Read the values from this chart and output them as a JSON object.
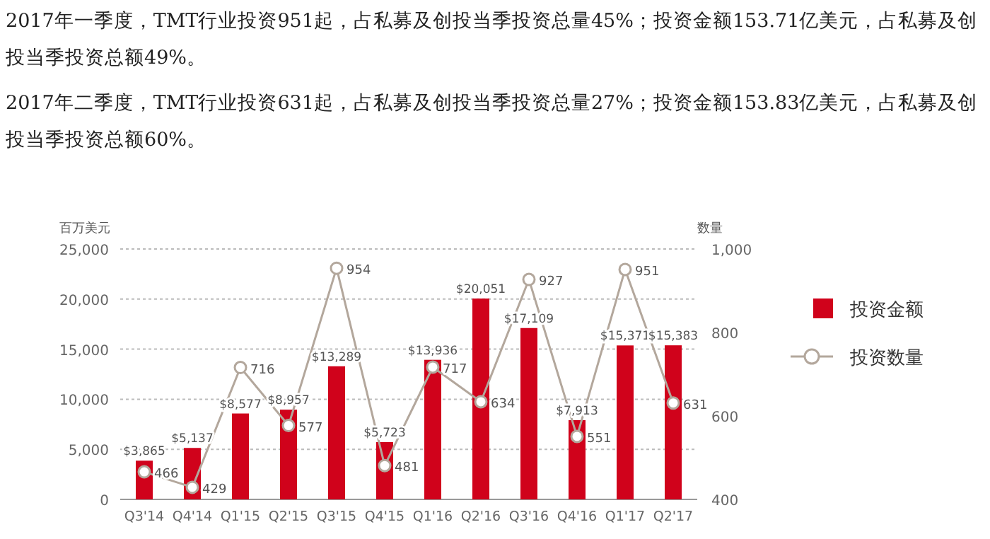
{
  "chart_data": {
    "type": "bar",
    "annotations": [
      "2017年一季度，TMT行业投资951起，占私募及创投当季投资总量45%；投资金额153.71亿美元，占私募及创投当季投资总额49%。",
      "2017年二季度，TMT行业投资631起，占私募及创投当季投资总量27%；投资金额153.83亿美元，占私募及创投当季投资总额60%。"
    ],
    "ylabel": "百万美元",
    "y2label": "数量",
    "categories": [
      "Q3'14",
      "Q4'14",
      "Q1'15",
      "Q2'15",
      "Q3'15",
      "Q4'15",
      "Q1'16",
      "Q2'16",
      "Q3'16",
      "Q4'16",
      "Q1'17",
      "Q2'17"
    ],
    "series": [
      {
        "name": "投资金额",
        "color": "#d0021b",
        "values": [
          3865,
          5137,
          8577,
          8957,
          13289,
          5723,
          13936,
          20051,
          17109,
          7913,
          15371,
          15383
        ],
        "value_labels": [
          "$3,865",
          "$5,137",
          "$8,577",
          "$8,957",
          "$13,289",
          "$5,723",
          "$13,936",
          "$20,051",
          "$17,109",
          "$7,913",
          "$15,371",
          "$15,383"
        ]
      },
      {
        "name": "投资数量",
        "type": "line",
        "axis": "y2",
        "color": "#b3a79c",
        "marker": "circle",
        "values": [
          466,
          429,
          716,
          577,
          954,
          481,
          717,
          634,
          927,
          551,
          951,
          631
        ],
        "value_labels": [
          "466",
          "429",
          "716",
          "577",
          "954",
          "481",
          "717",
          "634",
          "927",
          "551",
          "951",
          "631"
        ]
      }
    ],
    "ylim": [
      0,
      25000
    ],
    "yticks": [
      {
        "value": 0,
        "label": "0"
      },
      {
        "value": 5000,
        "label": "5,000"
      },
      {
        "value": 10000,
        "label": "10,000"
      },
      {
        "value": 15000,
        "label": "15,000"
      },
      {
        "value": 20000,
        "label": "20,000"
      },
      {
        "value": 25000,
        "label": "25,000"
      }
    ],
    "y2lim": [
      400,
      1000
    ],
    "y2ticks": [
      {
        "value": 400,
        "label": "400"
      },
      {
        "value": 600,
        "label": "600"
      },
      {
        "value": 800,
        "label": "800"
      },
      {
        "value": 1000,
        "label": "1,000"
      }
    ],
    "grid": "y",
    "legend": "right"
  }
}
